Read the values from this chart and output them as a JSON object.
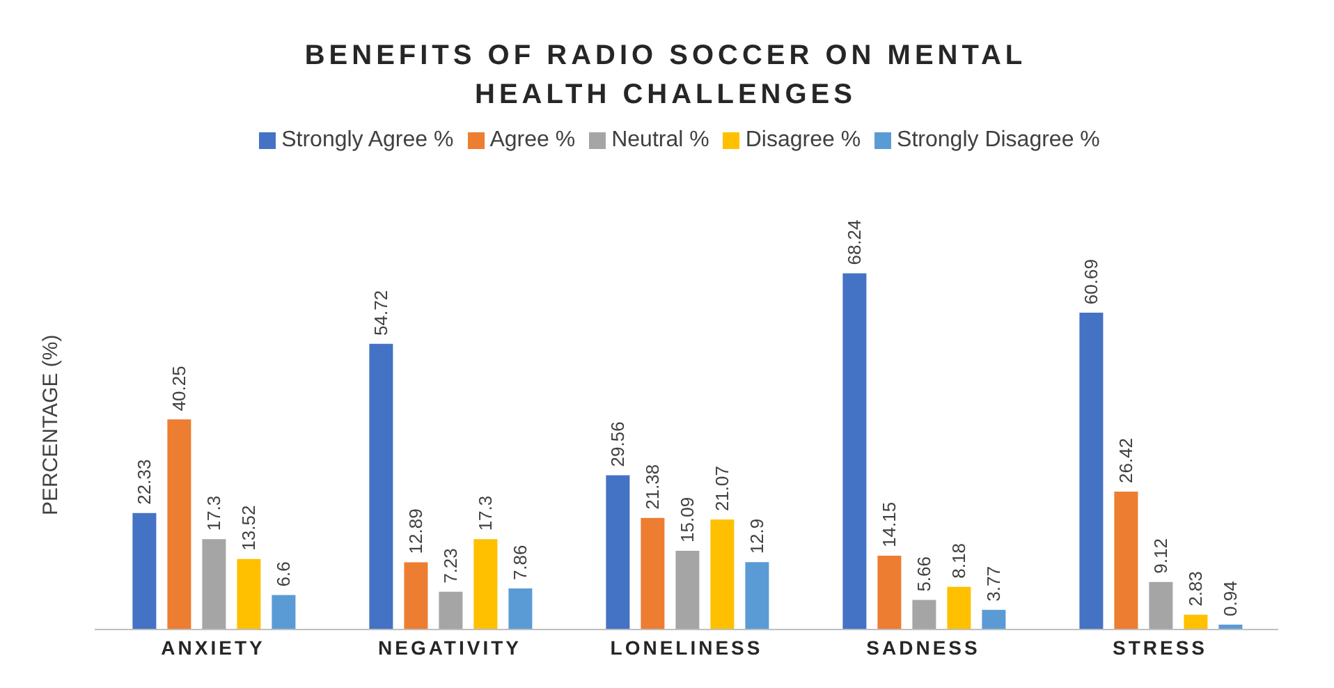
{
  "chart_data": {
    "type": "bar",
    "title": "BENEFITS OF RADIO SOCCER ON MENTAL HEALTH CHALLENGES",
    "ylabel": "PERCENTAGE (%)",
    "categories": [
      "ANXIETY",
      "NEGATIVITY",
      "LONELINESS",
      "SADNESS",
      "STRESS"
    ],
    "series": [
      {
        "name": "Strongly Agree %",
        "color": "#4472c4",
        "values": [
          22.33,
          54.72,
          29.56,
          68.24,
          60.69
        ]
      },
      {
        "name": "Agree %",
        "color": "#ed7d31",
        "values": [
          40.25,
          12.89,
          21.38,
          14.15,
          26.42
        ]
      },
      {
        "name": "Neutral %",
        "color": "#a5a5a5",
        "values": [
          17.3,
          7.23,
          15.09,
          5.66,
          9.12
        ]
      },
      {
        "name": "Disagree %",
        "color": "#ffc000",
        "values": [
          13.52,
          17.3,
          21.07,
          8.18,
          2.83
        ]
      },
      {
        "name": "Strongly Disagree %",
        "color": "#5b9bd5",
        "values": [
          6.6,
          7.86,
          12.9,
          3.77,
          0.94
        ]
      }
    ],
    "data_labels": true,
    "legend": "top",
    "grid": false
  }
}
